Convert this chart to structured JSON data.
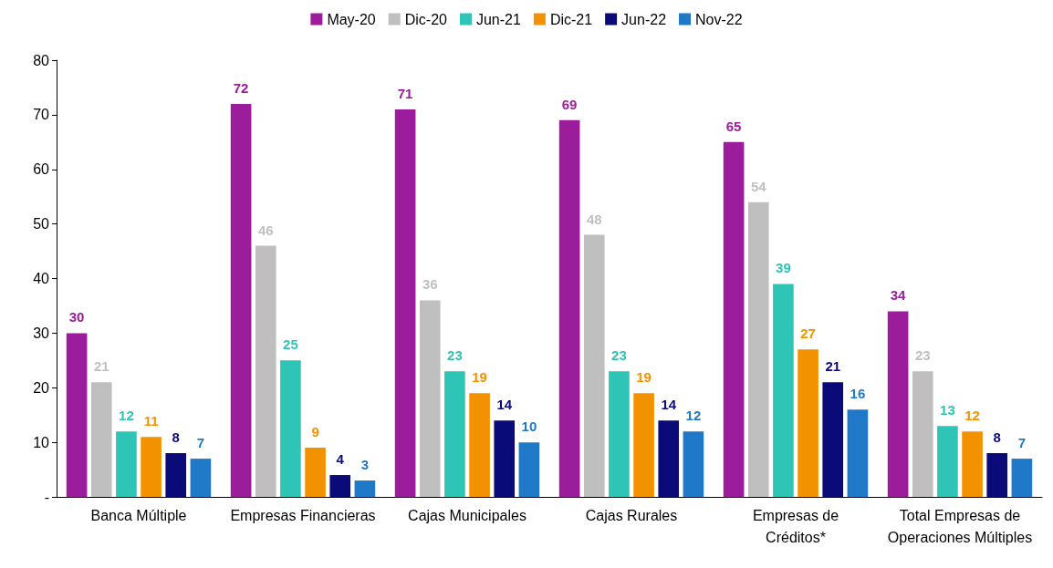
{
  "chart_data": {
    "type": "bar",
    "categories": [
      "Banca Múltiple",
      "Empresas Financieras",
      "Cajas Municipales",
      "Cajas Rurales",
      "Empresas de\nCréditos*",
      "Total Empresas de\nOperaciones Múltiples"
    ],
    "series": [
      {
        "name": "May-20",
        "color": "#9b1d9b",
        "values": [
          30,
          72,
          71,
          69,
          65,
          34
        ]
      },
      {
        "name": "Dic-20",
        "color": "#bfbfbf",
        "values": [
          21,
          46,
          36,
          48,
          54,
          23
        ]
      },
      {
        "name": "Jun-21",
        "color": "#2ec4b6",
        "values": [
          12,
          25,
          23,
          23,
          39,
          13
        ]
      },
      {
        "name": "Dic-21",
        "color": "#f39200",
        "values": [
          11,
          9,
          19,
          19,
          27,
          12
        ]
      },
      {
        "name": "Jun-22",
        "color": "#0a0a78",
        "values": [
          8,
          4,
          14,
          14,
          21,
          8
        ]
      },
      {
        "name": "Nov-22",
        "color": "#1f78c8",
        "values": [
          7,
          3,
          10,
          12,
          16,
          7
        ]
      }
    ],
    "ylim": [
      0,
      80
    ],
    "yticks": [
      {
        "value": 0,
        "label": "-"
      },
      10,
      20,
      30,
      40,
      50,
      60,
      70,
      80
    ],
    "grid": false,
    "legend": "top",
    "data_labels": true
  }
}
